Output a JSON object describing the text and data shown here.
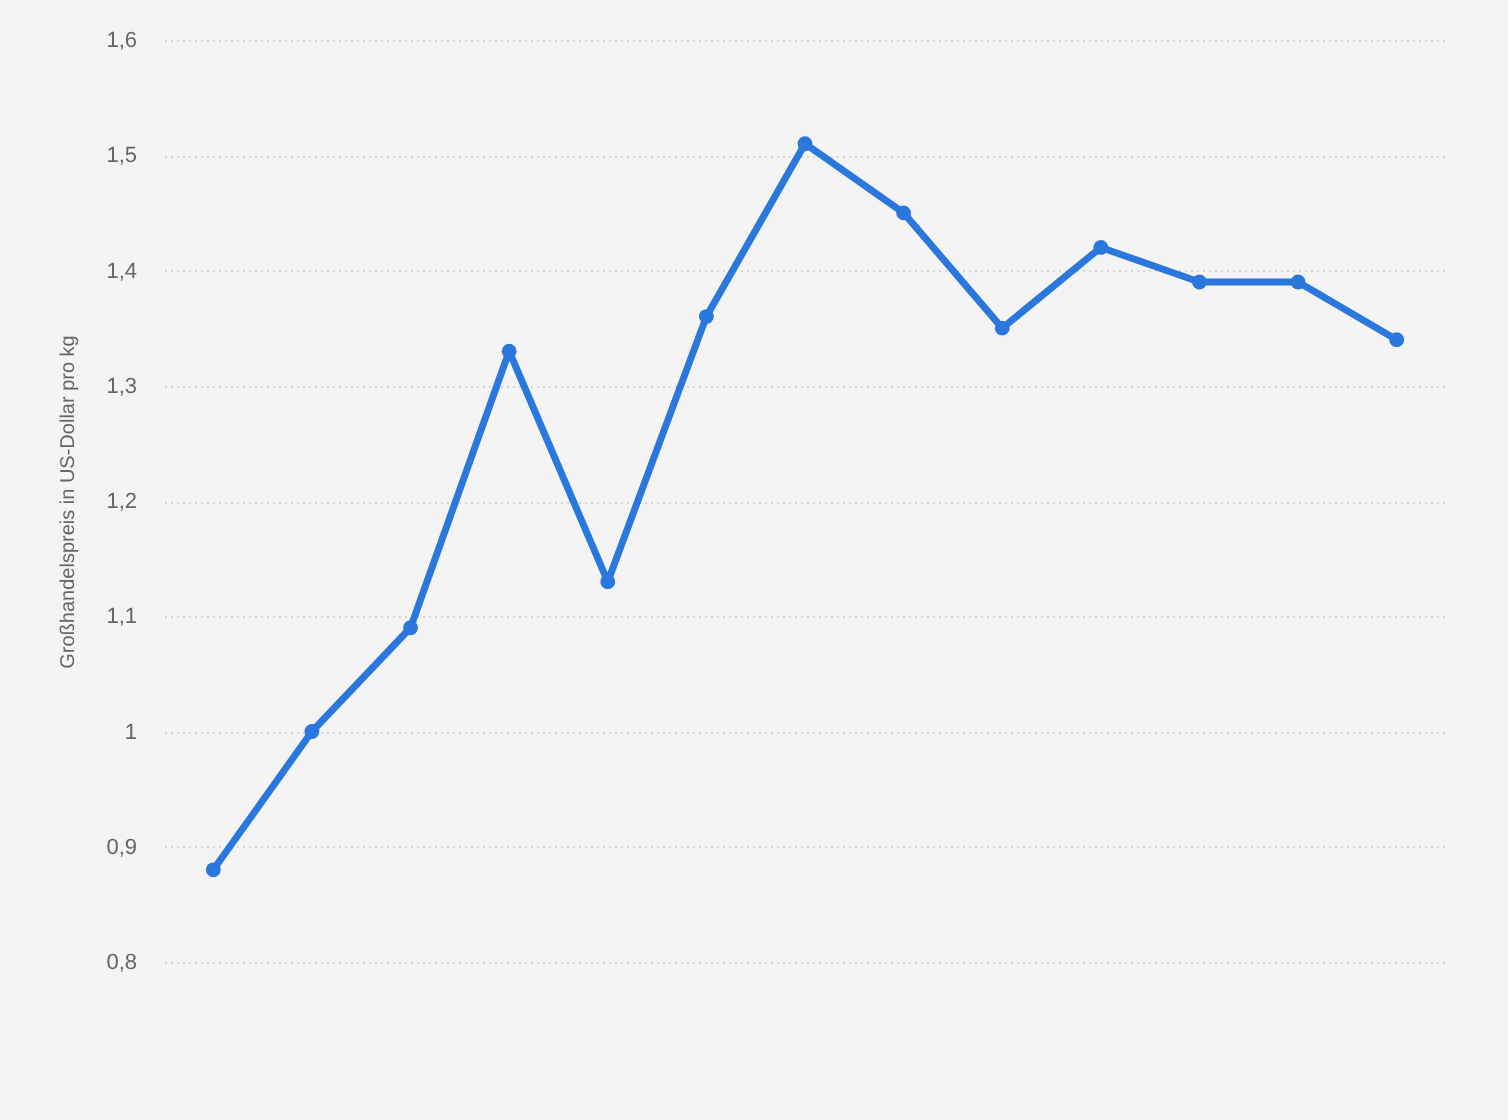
{
  "chart_data": {
    "type": "line",
    "ylabel": "Großhandelspreis in US-Dollar pro kg",
    "categories": [
      null,
      null,
      null,
      null,
      null,
      null,
      null,
      null,
      null,
      null,
      null,
      null,
      null
    ],
    "values": [
      0.88,
      1.0,
      1.09,
      1.33,
      1.13,
      1.36,
      1.51,
      1.45,
      1.35,
      1.42,
      1.39,
      1.39,
      1.34
    ],
    "color": "#2a77dd",
    "ylim": [
      0.8,
      1.6
    ],
    "yticks": [
      {
        "value": 0.8,
        "label": "0,8"
      },
      {
        "value": 0.9,
        "label": "0,9"
      },
      1,
      {
        "value": 1.1,
        "label": "1,1"
      },
      {
        "value": 1.2,
        "label": "1,2"
      },
      {
        "value": 1.3,
        "label": "1,3"
      },
      {
        "value": 1.4,
        "label": "1,4"
      },
      {
        "value": 1.5,
        "label": "1,5"
      },
      {
        "value": 1.6,
        "label": "1,6"
      }
    ],
    "grid": "y",
    "marker": "circle",
    "tick_labels": "y"
  }
}
